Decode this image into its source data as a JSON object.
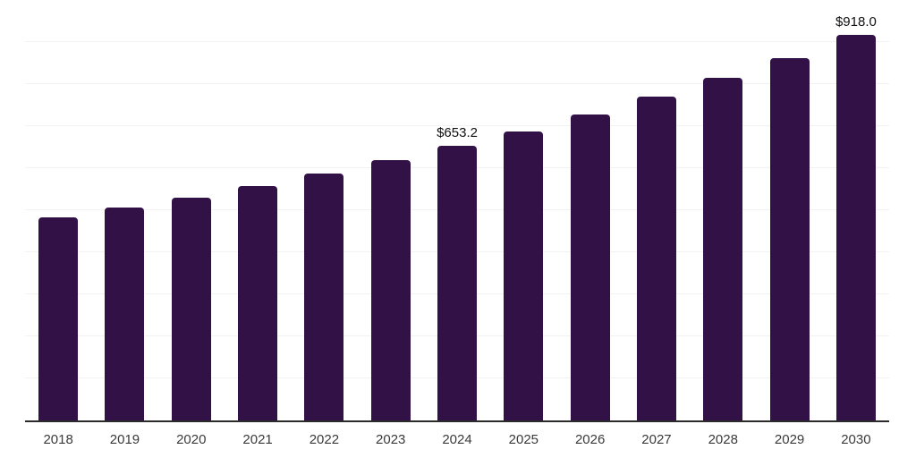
{
  "chart_data": {
    "type": "bar",
    "title": "",
    "xlabel": "",
    "ylabel": "",
    "categories": [
      "2018",
      "2019",
      "2020",
      "2021",
      "2022",
      "2023",
      "2024",
      "2025",
      "2026",
      "2027",
      "2028",
      "2029",
      "2030"
    ],
    "values": [
      482.0,
      505.9,
      530.7,
      557.6,
      587.2,
      619.0,
      653.2,
      686.8,
      728.3,
      770.7,
      813.9,
      861.2,
      918.0
    ],
    "data_labels": [
      null,
      null,
      null,
      null,
      null,
      null,
      "$653.2",
      null,
      null,
      null,
      null,
      null,
      "$918.0"
    ],
    "ylim": [
      0,
      1000
    ],
    "grid_step": 100,
    "grid": "horizontal-only",
    "legend": "none",
    "y_axis_tick_labels": "none",
    "colors": {
      "bar_fill": "#321146",
      "gridline": "#f2f2f2",
      "axis_line": "#2b2b2b",
      "tick_label": "#3a3a3a",
      "data_label": "#111111",
      "background": "#ffffff"
    }
  }
}
